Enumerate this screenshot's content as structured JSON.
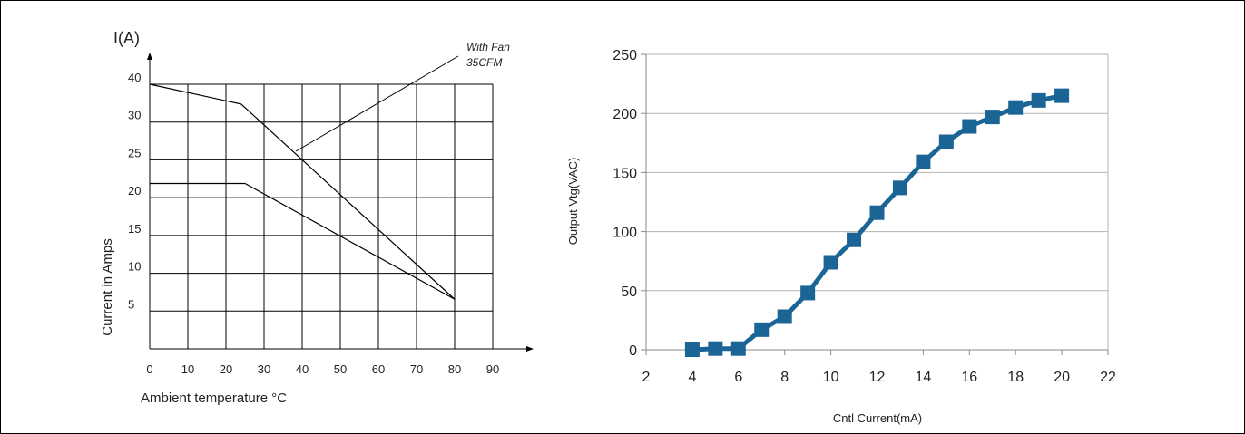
{
  "chart_data": [
    {
      "type": "line",
      "title": "",
      "unit_label": "I(A)",
      "xlabel": "Ambient temperature °C",
      "ylabel": "Current  in Amps",
      "xlim": [
        0,
        90
      ],
      "ylim": [
        0,
        45
      ],
      "grid": true,
      "x_ticks": [
        "0",
        "10",
        "20",
        "30",
        "40",
        "50",
        "60",
        "70",
        "80",
        "90"
      ],
      "y_ticks": [
        "40",
        "30",
        "25",
        "20",
        "15",
        "10",
        "5"
      ],
      "annotation": {
        "line1": "With Fan",
        "line2": "35CFM"
      },
      "series": [
        {
          "x": [
            0,
            24,
            80
          ],
          "y": [
            40,
            37,
            7.5
          ]
        },
        {
          "x": [
            0,
            25,
            80
          ],
          "y": [
            25,
            25,
            7.5
          ]
        }
      ]
    },
    {
      "type": "line",
      "title": "",
      "xlabel": "Cntl Current(mA)",
      "ylabel": "Output Vtg(VAC)",
      "xlim": [
        2,
        22
      ],
      "ylim": [
        0,
        250
      ],
      "grid": true,
      "x_ticks": [
        "2",
        "4",
        "6",
        "8",
        "10",
        "12",
        "14",
        "16",
        "18",
        "20",
        "22"
      ],
      "y_ticks": [
        "0",
        "50",
        "100",
        "150",
        "200",
        "250"
      ],
      "color": "#1a6496",
      "series": [
        {
          "x": [
            4,
            5,
            6,
            7,
            8,
            9,
            10,
            11,
            12,
            13,
            14,
            15,
            16,
            17,
            18,
            19,
            20
          ],
          "y": [
            0,
            1,
            1,
            17,
            28,
            48,
            74,
            93,
            116,
            137,
            159,
            176,
            189,
            197,
            205,
            211,
            215
          ]
        }
      ]
    }
  ]
}
